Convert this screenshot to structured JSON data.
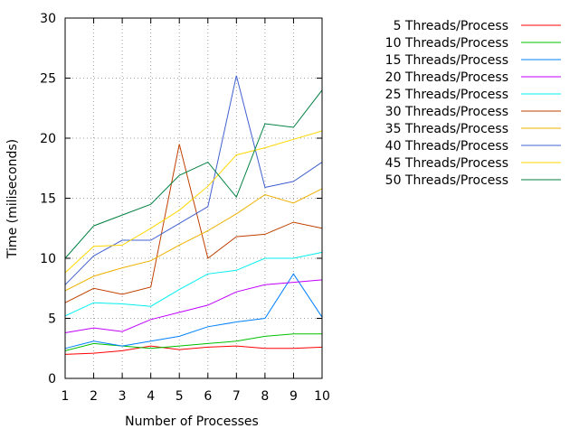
{
  "chart_data": {
    "type": "line",
    "title": "",
    "xlabel": "Number of Processes",
    "ylabel": "Time (miliseconds)",
    "xlim": [
      1,
      10
    ],
    "ylim": [
      0,
      30
    ],
    "x": [
      1,
      2,
      3,
      4,
      5,
      6,
      7,
      8,
      9,
      10
    ],
    "xticks": [
      "1",
      "2",
      "3",
      "4",
      "5",
      "6",
      "7",
      "8",
      "9",
      "10"
    ],
    "yticks": [
      "0",
      "5",
      "10",
      "15",
      "20",
      "25",
      "30"
    ],
    "grid": true,
    "legend_position": "right",
    "series": [
      {
        "name": "5 Threads/Process",
        "color": "#ff0000",
        "values": [
          2.0,
          2.1,
          2.3,
          2.7,
          2.4,
          2.6,
          2.7,
          2.5,
          2.5,
          2.6
        ]
      },
      {
        "name": "10 Threads/Process",
        "color": "#00c000",
        "values": [
          2.3,
          2.9,
          2.7,
          2.5,
          2.7,
          2.9,
          3.1,
          3.5,
          3.7,
          3.7
        ]
      },
      {
        "name": "15 Threads/Process",
        "color": "#0080ff",
        "values": [
          2.5,
          3.1,
          2.7,
          3.1,
          3.5,
          4.3,
          4.7,
          5.0,
          8.7,
          5.1
        ]
      },
      {
        "name": "20 Threads/Process",
        "color": "#c000ff",
        "values": [
          3.8,
          4.2,
          3.9,
          4.9,
          5.5,
          6.1,
          7.2,
          7.8,
          8.0,
          8.2
        ]
      },
      {
        "name": "25 Threads/Process",
        "color": "#00eeee",
        "values": [
          5.2,
          6.3,
          6.2,
          6.0,
          7.4,
          8.7,
          9.0,
          10.0,
          10.0,
          10.5
        ]
      },
      {
        "name": "30 Threads/Process",
        "color": "#c04000",
        "values": [
          6.3,
          7.5,
          7.0,
          7.6,
          19.5,
          10.0,
          11.8,
          12.0,
          13.0,
          12.5
        ]
      },
      {
        "name": "35 Threads/Process",
        "color": "#eeb000",
        "values": [
          7.3,
          8.5,
          9.2,
          9.8,
          11.1,
          12.3,
          13.7,
          15.3,
          14.6,
          15.8
        ]
      },
      {
        "name": "40 Threads/Process",
        "color": "#4060d0",
        "values": [
          7.8,
          10.2,
          11.5,
          11.5,
          12.9,
          14.3,
          25.2,
          15.9,
          16.4,
          18.0
        ]
      },
      {
        "name": "45 Threads/Process",
        "color": "#ffd700",
        "values": [
          8.8,
          11.0,
          11.1,
          12.5,
          14.0,
          16.0,
          18.6,
          19.2,
          19.9,
          20.6
        ]
      },
      {
        "name": "50 Threads/Process",
        "color": "#008040",
        "values": [
          10.0,
          12.7,
          13.6,
          14.5,
          16.9,
          18.0,
          15.1,
          21.2,
          20.9,
          24.0
        ]
      }
    ]
  }
}
